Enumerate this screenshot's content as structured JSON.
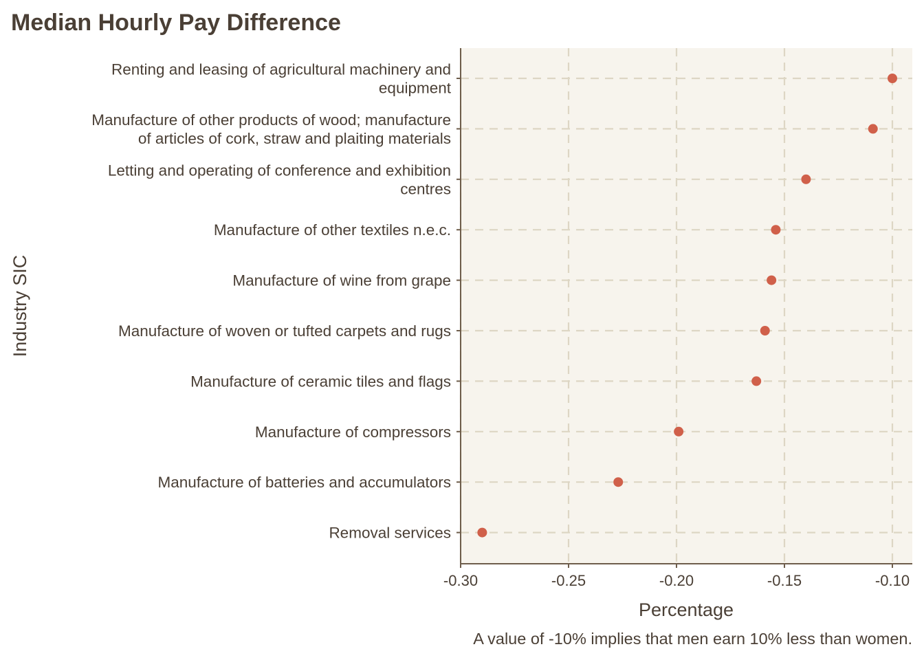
{
  "chart_data": {
    "type": "scatter",
    "title": "Median Hourly Pay Difference",
    "xlabel": "Percentage",
    "ylabel": "Industry SIC",
    "caption": "A value of -10% implies that men earn 10% less than women.",
    "xlim": [
      -0.3,
      -0.09
    ],
    "x_ticks": [
      -0.3,
      -0.25,
      -0.2,
      -0.15,
      -0.1
    ],
    "x_tick_labels": [
      "-0.30",
      "-0.25",
      "-0.20",
      "-0.15",
      "-0.10"
    ],
    "grid": true,
    "legend": "none",
    "colors": {
      "point": "#d0604a",
      "panel_background": "#f7f4ed",
      "grid": "#ddd6c4",
      "axis": "#6e5d4b",
      "text": "#4a3f35"
    },
    "categories": [
      [
        "Renting and leasing of agricultural machinery and",
        "equipment"
      ],
      [
        "Manufacture of other products of wood; manufacture",
        "of articles of cork, straw and plaiting materials"
      ],
      [
        "Letting and operating of conference and exhibition",
        "centres"
      ],
      [
        "Manufacture of other textiles n.e.c."
      ],
      [
        "Manufacture of wine from grape"
      ],
      [
        "Manufacture of woven or tufted carpets and rugs"
      ],
      [
        "Manufacture of ceramic tiles and flags"
      ],
      [
        "Manufacture of compressors"
      ],
      [
        "Manufacture of batteries and accumulators"
      ],
      [
        "Removal services"
      ]
    ],
    "values": [
      -0.1,
      -0.109,
      -0.14,
      -0.154,
      -0.156,
      -0.159,
      -0.163,
      -0.199,
      -0.227,
      -0.29
    ]
  }
}
